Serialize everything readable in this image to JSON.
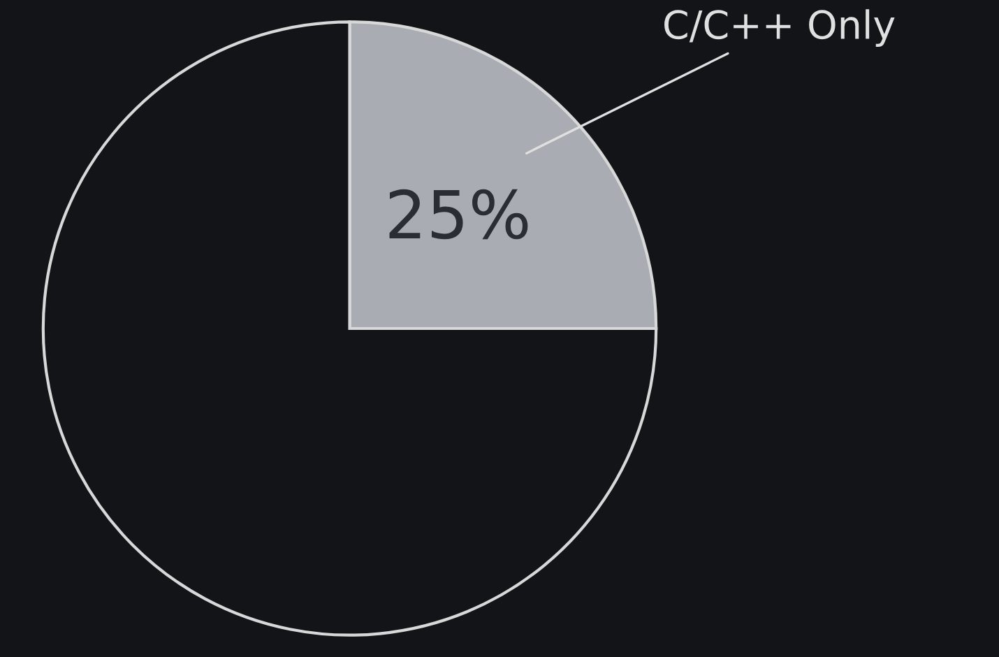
{
  "chart_data": {
    "type": "pie",
    "categories": [
      "C/C++ Only",
      null
    ],
    "values": [
      25,
      75
    ],
    "colors": [
      "#a9adb3",
      "#131417"
    ],
    "value_labels": [
      "25%",
      null
    ]
  }
}
